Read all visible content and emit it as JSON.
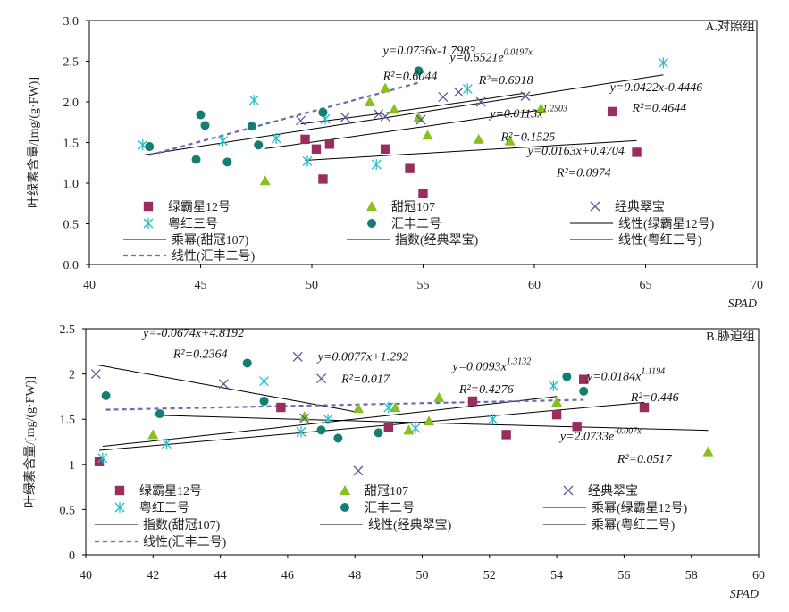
{
  "colors": {
    "lvbaxing12": "#9b2d5e",
    "tianguan107": "#88c01e",
    "jingdiancuibao": "#5a5a98",
    "yuehong3": "#26bcc8",
    "huifeng2": "#137f72",
    "trend": "#000000",
    "trend_dashed": "#6b6bb5"
  },
  "shared": {
    "ylabel": "叶绿素含量/[mg/(g·FW)]",
    "xlabel": "SPAD"
  },
  "chart_data": [
    {
      "type": "scatter",
      "title": "A.对照组",
      "xlabel": "SPAD",
      "ylabel": "叶绿素含量/[mg/(g·FW)]",
      "xlim": [
        40,
        70
      ],
      "ylim": [
        0,
        3.0
      ],
      "xticks": [
        "40",
        "45",
        "50",
        "55",
        "60",
        "65",
        "70"
      ],
      "yticks": [
        "0.0",
        "0.5",
        "1.0",
        "1.5",
        "2.0",
        "2.5",
        "3.0"
      ],
      "grid": false,
      "series": [
        {
          "name": "绿霸星12号",
          "marker": "square",
          "color_key": "lvbaxing12",
          "x": [
            49.7,
            50.2,
            50.5,
            50.8,
            53.3,
            54.4,
            55.0,
            63.5,
            64.6
          ],
          "y": [
            1.54,
            1.42,
            1.05,
            1.48,
            1.42,
            1.18,
            0.87,
            1.88,
            1.38
          ]
        },
        {
          "name": "甜冠107",
          "marker": "triangle",
          "color_key": "tianguan107",
          "x": [
            47.9,
            52.6,
            53.3,
            53.7,
            54.8,
            55.2,
            57.5,
            58.9,
            60.3
          ],
          "y": [
            1.03,
            2.0,
            2.17,
            1.91,
            1.81,
            1.59,
            1.54,
            1.52,
            1.92
          ]
        },
        {
          "name": "经典翠宝",
          "marker": "x",
          "color_key": "jingdiancuibao",
          "x": [
            49.5,
            51.5,
            53.0,
            53.3,
            54.9,
            55.9,
            56.6,
            57.6,
            59.6
          ],
          "y": [
            1.77,
            1.81,
            1.85,
            1.82,
            1.78,
            2.06,
            2.12,
            2.0,
            2.07
          ]
        },
        {
          "name": "粤红三号",
          "marker": "asterisk",
          "color_key": "yuehong3",
          "x": [
            42.4,
            46.0,
            47.4,
            48.4,
            49.8,
            50.6,
            52.9,
            57.0,
            65.8
          ],
          "y": [
            1.47,
            1.52,
            2.02,
            1.55,
            1.27,
            1.79,
            1.23,
            2.16,
            2.48
          ]
        },
        {
          "name": "汇丰二号",
          "marker": "circle",
          "color_key": "huifeng2",
          "x": [
            42.7,
            44.8,
            45.0,
            45.2,
            46.2,
            47.3,
            47.6,
            50.5,
            54.8
          ],
          "y": [
            1.45,
            1.29,
            1.84,
            1.71,
            1.26,
            1.7,
            1.47,
            1.87,
            2.38
          ]
        }
      ],
      "trendlines": [
        {
          "name": "线性(绿霸星12号)",
          "kind": "linear",
          "coef": [
            0.0163,
            0.4704
          ],
          "x_range": [
            49.7,
            64.6
          ],
          "style": "solid"
        },
        {
          "name": "乘幂(甜冠107)",
          "kind": "power",
          "coef": [
            0.0113,
            1.2503
          ],
          "x_range": [
            47.9,
            60.3
          ],
          "style": "solid"
        },
        {
          "name": "指数(经典翠宝)",
          "kind": "exponential",
          "coef": [
            0.6521,
            0.0197
          ],
          "x_range": [
            49.5,
            59.6
          ],
          "style": "solid"
        },
        {
          "name": "线性(粤红三号)",
          "kind": "linear",
          "coef": [
            0.0422,
            -0.4446
          ],
          "x_range": [
            42.4,
            65.8
          ],
          "style": "solid"
        },
        {
          "name": "线性(汇丰二号)",
          "kind": "linear",
          "coef": [
            0.0736,
            -1.7983
          ],
          "x_range": [
            42.7,
            54.8
          ],
          "style": "dashed"
        }
      ],
      "legend": [
        "绿霸星12号",
        "甜冠107",
        "经典翠宝",
        "粤红三号",
        "汇丰二号",
        "线性(绿霸星12号)",
        "乘幂(甜冠107)",
        "指数(经典翠宝)",
        "线性(粤红三号)",
        "线性(汇丰二号)"
      ],
      "legend_placement": "bottom",
      "annotations": [
        {
          "text": "y=0.0736x-1.7983",
          "at": [
            53.2,
            2.58
          ]
        },
        {
          "text": "R²=0.6044",
          "at": [
            53.2,
            2.27
          ]
        },
        {
          "text": "y=0.6521e^0.0197x",
          "at": [
            56.2,
            2.5
          ]
        },
        {
          "text": "R²=0.6918",
          "at": [
            57.5,
            2.22
          ]
        },
        {
          "text": "y=0.0422x-0.4446",
          "at": [
            63.4,
            2.13
          ]
        },
        {
          "text": "y=0.0113x^1.2503",
          "at": [
            58.0,
            1.81
          ]
        },
        {
          "text": "R²=0.4644",
          "at": [
            64.4,
            1.88
          ]
        },
        {
          "text": "R²=0.1525",
          "at": [
            58.5,
            1.52
          ]
        },
        {
          "text": "y=0.0163x+0.4704",
          "at": [
            59.7,
            1.35
          ]
        },
        {
          "text": "R²=0.0974",
          "at": [
            61.0,
            1.08
          ]
        }
      ]
    },
    {
      "type": "scatter",
      "title": "B.胁迫组",
      "xlabel": "SPAD",
      "ylabel": "叶绿素含量/[mg/(g·FW)]",
      "xlim": [
        40,
        60
      ],
      "ylim": [
        0,
        2.5
      ],
      "xticks": [
        "40",
        "42",
        "44",
        "46",
        "48",
        "50",
        "52",
        "54",
        "56",
        "58",
        "60"
      ],
      "yticks": [
        "0",
        "0.5",
        "1",
        "1.5",
        "2",
        "2.5"
      ],
      "grid": false,
      "series": [
        {
          "name": "绿霸星12号",
          "marker": "square",
          "color_key": "lvbaxing12",
          "x": [
            40.4,
            45.8,
            49.0,
            51.5,
            52.5,
            54.0,
            54.6,
            54.8,
            56.6
          ],
          "y": [
            1.03,
            1.63,
            1.41,
            1.7,
            1.33,
            1.55,
            1.42,
            1.94,
            1.63
          ]
        },
        {
          "name": "甜冠107",
          "marker": "triangle",
          "color_key": "tianguan107",
          "x": [
            42.0,
            46.5,
            48.1,
            49.2,
            49.6,
            50.2,
            50.5,
            54.0,
            58.5
          ],
          "y": [
            1.33,
            1.53,
            1.62,
            1.63,
            1.38,
            1.48,
            1.74,
            1.69,
            1.14
          ]
        },
        {
          "name": "经典翠宝",
          "marker": "x",
          "color_key": "jingdiancuibao",
          "x": [
            40.3,
            44.1,
            46.3,
            46.5,
            47.0,
            48.1
          ],
          "y": [
            2.0,
            1.89,
            2.19,
            1.51,
            1.95,
            0.93
          ]
        },
        {
          "name": "粤红三号",
          "marker": "asterisk",
          "color_key": "yuehong3",
          "x": [
            40.5,
            42.4,
            45.3,
            46.4,
            47.2,
            49.0,
            49.8,
            52.1,
            53.9
          ],
          "y": [
            1.07,
            1.23,
            1.92,
            1.36,
            1.5,
            1.63,
            1.4,
            1.5,
            1.87
          ]
        },
        {
          "name": "汇丰二号",
          "marker": "circle",
          "color_key": "huifeng2",
          "x": [
            40.6,
            42.2,
            44.8,
            45.3,
            47.0,
            47.5,
            48.7,
            54.3,
            54.8
          ],
          "y": [
            1.76,
            1.56,
            2.12,
            1.7,
            1.38,
            1.29,
            1.35,
            1.97,
            1.81
          ]
        }
      ],
      "trendlines": [
        {
          "name": "乘幂(绿霸星12号)",
          "kind": "power",
          "coef": [
            0.0184,
            1.1194
          ],
          "x_range": [
            40.4,
            56.6
          ],
          "style": "solid"
        },
        {
          "name": "指数(甜冠107)",
          "kind": "exponential",
          "coef": [
            2.0733,
            -0.007
          ],
          "x_range": [
            42.0,
            58.5
          ],
          "style": "solid"
        },
        {
          "name": "线性(经典翠宝)",
          "kind": "linear",
          "coef": [
            -0.0674,
            4.8192
          ],
          "x_range": [
            40.3,
            48.1
          ],
          "style": "solid"
        },
        {
          "name": "乘幂(粤红三号)",
          "kind": "power",
          "coef": [
            0.0093,
            1.3132
          ],
          "x_range": [
            40.5,
            54.0
          ],
          "style": "solid"
        },
        {
          "name": "线性(汇丰二号)",
          "kind": "linear",
          "coef": [
            0.0077,
            1.292
          ],
          "x_range": [
            40.6,
            54.8
          ],
          "style": "dashed"
        }
      ],
      "legend": [
        "绿霸星12号",
        "甜冠107",
        "经典翠宝",
        "粤红三号",
        "汇丰二号",
        "乘幂(绿霸星12号)",
        "指数(甜冠107)",
        "线性(经典翠宝)",
        "乘幂(粤红三号)",
        "线性(汇丰二号)"
      ],
      "legend_placement": "bottom",
      "annotations": [
        {
          "text": "y=-0.0674x+4.8192",
          "at": [
            41.7,
            2.41
          ]
        },
        {
          "text": "R²=0.2364",
          "at": [
            42.6,
            2.18
          ]
        },
        {
          "text": "y=0.0077x+1.292",
          "at": [
            46.9,
            2.15
          ]
        },
        {
          "text": "R²=0.017",
          "at": [
            47.6,
            1.9
          ]
        },
        {
          "text": "y=0.0093x^1.3132",
          "at": [
            50.9,
            2.04
          ]
        },
        {
          "text": "R²=0.4276",
          "at": [
            51.1,
            1.79
          ]
        },
        {
          "text": "y=0.0184x^1.1194",
          "at": [
            54.9,
            1.93
          ]
        },
        {
          "text": "R²=0.446",
          "at": [
            56.2,
            1.7
          ]
        },
        {
          "text": "y=2.0733e^-0.007x",
          "at": [
            54.1,
            1.27
          ]
        },
        {
          "text": "R²=0.0517",
          "at": [
            55.8,
            1.02
          ]
        }
      ]
    }
  ]
}
